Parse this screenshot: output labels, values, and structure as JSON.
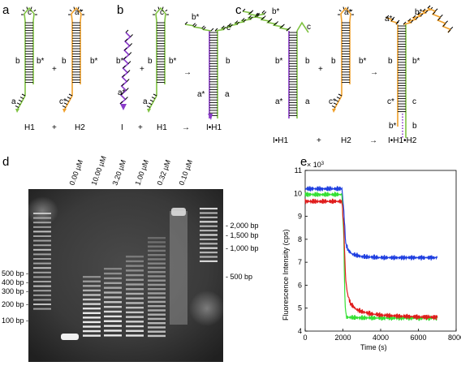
{
  "panels": {
    "a": "a",
    "b": "b",
    "c": "c",
    "d": "d",
    "e": "e"
  },
  "segments": {
    "a": "a",
    "a_star": "a*",
    "b": "b",
    "b_star": "b*",
    "c": "c",
    "c_star": "c*"
  },
  "captions": {
    "a": [
      "H1",
      "+",
      "H2"
    ],
    "b": [
      "I",
      "+",
      "H1",
      "→",
      "I•H1"
    ],
    "c": [
      "I•H1",
      "+",
      "H2",
      "→",
      "I•H1•H2"
    ]
  },
  "gel": {
    "concentrations": [
      "0.00 µM",
      "10.00 µM",
      "3.20 µM",
      "1.00 µM",
      "0.32 µM",
      "0.10 µM"
    ],
    "left_ladder": [
      "500 bp -",
      "400 bp -",
      "300 bp -",
      "200 bp -",
      "100 bp -"
    ],
    "right_ladder": [
      "- 2,000 bp",
      "- 1,500 bp",
      "- 1,000 bp",
      "- 500 bp"
    ]
  },
  "colors": {
    "h1": "#7fc241",
    "h2": "#f0a02a",
    "initiator": "#8a3bc9",
    "blue": "#1f3fe0",
    "green": "#35e035",
    "red": "#e01c1c"
  },
  "chart_data": {
    "type": "line",
    "xlabel": "Time (s)",
    "ylabel": "Fluorescence Intensity (cps)",
    "y_multiplier": "× 10",
    "y_multiplier_exp": "3",
    "xlim": [
      0,
      8000
    ],
    "ylim": [
      4,
      11
    ],
    "xticks": [
      0,
      2000,
      4000,
      6000,
      8000
    ],
    "yticks": [
      4,
      5,
      6,
      7,
      8,
      9,
      10,
      11
    ],
    "series": [
      {
        "color": "#1f3fe0",
        "x": [
          0,
          1950,
          2050,
          2150,
          2300,
          2500,
          3000,
          4000,
          5000,
          6000,
          7000
        ],
        "y": [
          10.2,
          10.2,
          9.2,
          7.8,
          7.5,
          7.35,
          7.25,
          7.2,
          7.2,
          7.2,
          7.2
        ]
      },
      {
        "color": "#35e035",
        "x": [
          0,
          1950,
          2050,
          2100,
          2150,
          2200,
          2300,
          3000,
          4000,
          5000,
          6000,
          7000
        ],
        "y": [
          9.95,
          9.95,
          8.0,
          5.5,
          4.8,
          4.6,
          4.6,
          4.58,
          4.57,
          4.57,
          4.57,
          4.57
        ]
      },
      {
        "color": "#e01c1c",
        "x": [
          0,
          1950,
          2050,
          2100,
          2150,
          2250,
          2400,
          2700,
          3000,
          3500,
          4000,
          5000,
          6000,
          7000
        ],
        "y": [
          9.65,
          9.65,
          8.5,
          7.2,
          6.2,
          5.6,
          5.2,
          4.95,
          4.85,
          4.75,
          4.7,
          4.65,
          4.62,
          4.6
        ]
      }
    ]
  }
}
